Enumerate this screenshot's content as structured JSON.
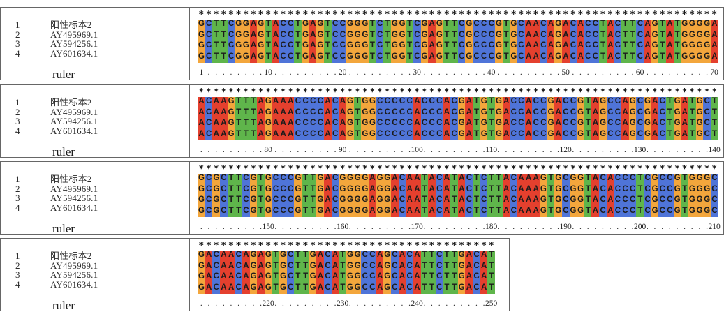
{
  "base_colors": {
    "A": "#e4402e",
    "C": "#4f74d8",
    "G": "#f3a63c",
    "T": "#5fb54b"
  },
  "blocks": [
    {
      "consensus": "**********************************************************************",
      "rows": [
        {
          "index": "1",
          "name": "阳性标本2",
          "seq": "GCTTCGGAGTACCTGAGTCCGGGTCTGGTCGAGTTCGCCCGTGCAACAGACACCTACTTCAGTATGGGGA"
        },
        {
          "index": "2",
          "name": "AY495969.1",
          "seq": "GCTTCGGAGTACCTGAGTCCGGGTCTGGTCGAGTTCGCCCGTGCAACAGACACCTACTTCAGTATGGGGA"
        },
        {
          "index": "3",
          "name": "AY594256.1",
          "seq": "GCTTCGGAGTACCTGAGTCCGGGTCTGGTCGAGTTCGCCCGTGCAACAGACACCTACTTCAGTATGGGGA"
        },
        {
          "index": "4",
          "name": "AY601634.1",
          "seq": "GCTTCGGAGTACCTGAGTCCGGGTCTGGTCGAGTTCGCCCGTGCAACAGACACCTACTTCAGTATGGGGA"
        }
      ],
      "ruler_label": "ruler",
      "ruler_ticks": [
        "1",
        "10",
        "20",
        "30",
        "40",
        "50",
        "60",
        "70"
      ]
    },
    {
      "consensus": "**********************************************************************",
      "rows": [
        {
          "index": "1",
          "name": "阳性标本2",
          "seq": "ACAAGTTTAGAAACCCCACAGTGGCCCCCACCCACGATGTGACCACCGACCGTAGCCAGCGACTGATGCT"
        },
        {
          "index": "2",
          "name": "AY495969.1",
          "seq": "ACAAGTTTAGAAACCCCACAGTGGCCCCCACCCACGATGTGACCACCGACCGTAGCCAGCGACTGATGCT"
        },
        {
          "index": "3",
          "name": "AY594256.1",
          "seq": "ACAAGTTTAGAAACCCCACAGTGGCCCCCACCCACGATGTGACCACCGACCGTAGCCAGCGACTGATGCT"
        },
        {
          "index": "4",
          "name": "AY601634.1",
          "seq": "ACAAGTTTAGAAACCCCACAGTGGCCCCCACCCACGATGTGACCACCGACCGTAGCCAGCGACTGATGCT"
        }
      ],
      "ruler_label": "ruler",
      "ruler_ticks": [
        "80",
        "90",
        "100",
        "110",
        "120",
        "130",
        "140"
      ]
    },
    {
      "consensus": "**********************************************************************",
      "rows": [
        {
          "index": "1",
          "name": "阳性标本2",
          "seq": "GCGCTTCGTGCCCGTTGACGGGGAGGACAATACATACTCTTACAAAGTGCGGTACACCCTCGCCGTGGGC"
        },
        {
          "index": "2",
          "name": "AY495969.1",
          "seq": "GCGCTTCGTGCCCGTTGACGGGGAGGACAATACATACTCTTACAAAGTGCGGTACACCCTCGCCGTGGGC"
        },
        {
          "index": "3",
          "name": "AY594256.1",
          "seq": "GCGCTTCGTGCCCGTTGACGGGGAGGACAATACATACTCTTACAAAGTGCGGTACACCCTCGCCGTGGGC"
        },
        {
          "index": "4",
          "name": "AY601634.1",
          "seq": "GCGCTTCGTGCCCGTTGACGGGGAGGACAATACATACTCTTACAAAGTGCGGTACACCCTCGCCGTGGGC"
        }
      ],
      "ruler_label": "ruler",
      "ruler_ticks": [
        "150",
        "160",
        "170",
        "180",
        "190",
        "200",
        "210"
      ]
    },
    {
      "consensus": "****************************************",
      "rows": [
        {
          "index": "1",
          "name": "阳性标本2",
          "seq": "GACAACAGAGTGCTTGACATGGCCAGCACATTCTTGACAT"
        },
        {
          "index": "2",
          "name": "AY495969.1",
          "seq": "GACAACAGAGTGCTTGACATGGCCAGCACATTCTTGACAT"
        },
        {
          "index": "3",
          "name": "AY594256.1",
          "seq": "GACAACAGAGTGCTTGACATGGCCAGCACATTCTTGACAT"
        },
        {
          "index": "4",
          "name": "AY601634.1",
          "seq": "GACAACAGAGTGCTTGACATGGCCAGCACATTCTTGACAT"
        }
      ],
      "ruler_label": "ruler",
      "ruler_ticks": [
        "220",
        "230",
        "240",
        "250"
      ]
    }
  ]
}
